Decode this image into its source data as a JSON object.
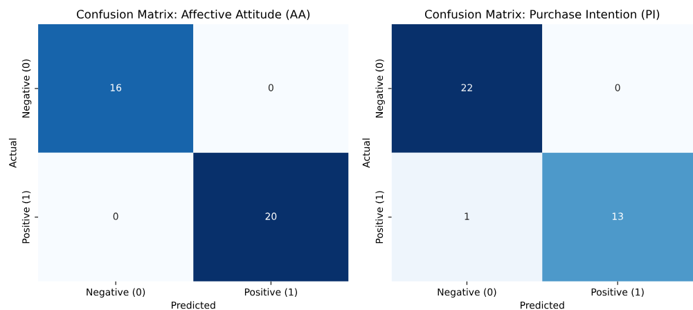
{
  "chart_data": [
    {
      "type": "heatmap",
      "title": "Confusion Matrix: Affective Attitude (AA)",
      "xlabel": "Predicted",
      "ylabel": "Actual",
      "categories": [
        "Negative (0)",
        "Positive (1)"
      ],
      "y_categories": [
        "Negative (0)",
        "Positive (1)"
      ],
      "cells": [
        [
          16,
          0
        ],
        [
          0,
          20
        ]
      ],
      "data_labels": true
    },
    {
      "type": "heatmap",
      "title": "Confusion Matrix: Purchase Intention (PI)",
      "xlabel": "Predicted",
      "ylabel": "Actual",
      "categories": [
        "Negative (0)",
        "Positive (1)"
      ],
      "y_categories": [
        "Negative (0)",
        "Positive (1)"
      ],
      "cells": [
        [
          22,
          0
        ],
        [
          1,
          13
        ]
      ],
      "data_labels": true
    }
  ]
}
